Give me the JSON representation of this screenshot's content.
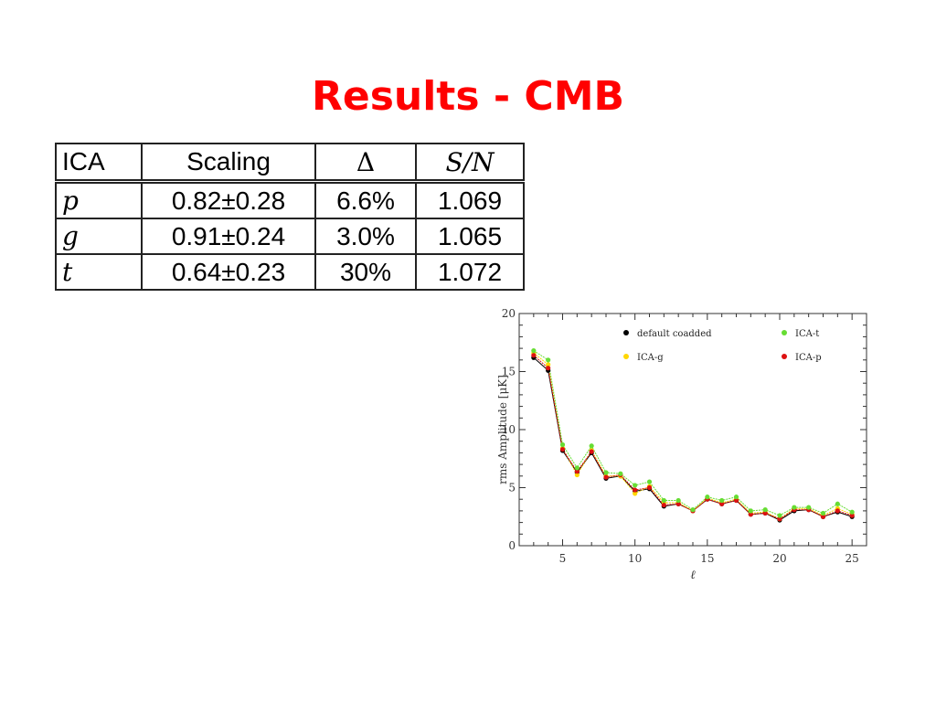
{
  "slide": {
    "title": "Results - CMB"
  },
  "table": {
    "headers": [
      "ICA",
      "Scaling",
      "Δ",
      "S/N"
    ],
    "rows": [
      {
        "label": "p",
        "scaling": "0.82±0.28",
        "delta": "6.6%",
        "sn": "1.069"
      },
      {
        "label": "g",
        "scaling": "0.91±0.24",
        "delta": "3.0%",
        "sn": "1.065"
      },
      {
        "label": "t",
        "scaling": "0.64±0.23",
        "delta": "30%",
        "sn": "1.072"
      }
    ]
  },
  "chart_data": {
    "type": "scatter",
    "xlabel": "ℓ",
    "ylabel": "rms Amplitude [μK]",
    "xlim": [
      2,
      26
    ],
    "ylim": [
      0,
      20
    ],
    "xticks": [
      5,
      10,
      15,
      20,
      25
    ],
    "yticks": [
      0,
      5,
      10,
      15,
      20
    ],
    "grid": false,
    "legend_position": "top",
    "x": [
      3,
      4,
      5,
      6,
      7,
      8,
      9,
      10,
      11,
      12,
      13,
      14,
      15,
      16,
      17,
      18,
      19,
      20,
      21,
      22,
      23,
      24,
      25
    ],
    "series": [
      {
        "name": "default coadded",
        "color": "#000000",
        "values": [
          16.2,
          15.1,
          8.2,
          6.3,
          8.0,
          5.8,
          6.0,
          4.7,
          4.9,
          3.4,
          3.6,
          3.0,
          4.0,
          3.6,
          3.9,
          2.7,
          2.8,
          2.2,
          3.0,
          3.1,
          2.5,
          2.9,
          2.5
        ]
      },
      {
        "name": "ICA-t",
        "color": "#66dd33",
        "values": [
          16.8,
          16.0,
          8.7,
          6.7,
          8.6,
          6.3,
          6.2,
          5.2,
          5.5,
          3.9,
          3.9,
          3.1,
          4.2,
          3.9,
          4.2,
          3.0,
          3.1,
          2.6,
          3.3,
          3.3,
          2.8,
          3.6,
          2.9
        ]
      },
      {
        "name": "ICA-g",
        "color": "#ffd700",
        "values": [
          16.6,
          15.6,
          8.4,
          6.1,
          8.2,
          6.0,
          6.0,
          4.5,
          5.1,
          3.7,
          3.7,
          3.0,
          4.1,
          3.7,
          4.0,
          2.8,
          2.9,
          2.3,
          3.2,
          3.2,
          2.6,
          3.2,
          2.7
        ]
      },
      {
        "name": "ICA-p",
        "color": "#dd1111",
        "values": [
          16.4,
          15.3,
          8.3,
          6.4,
          8.1,
          5.9,
          6.1,
          4.8,
          5.0,
          3.5,
          3.6,
          3.0,
          4.0,
          3.6,
          3.9,
          2.7,
          2.8,
          2.3,
          3.1,
          3.1,
          2.5,
          3.0,
          2.6
        ]
      }
    ]
  }
}
